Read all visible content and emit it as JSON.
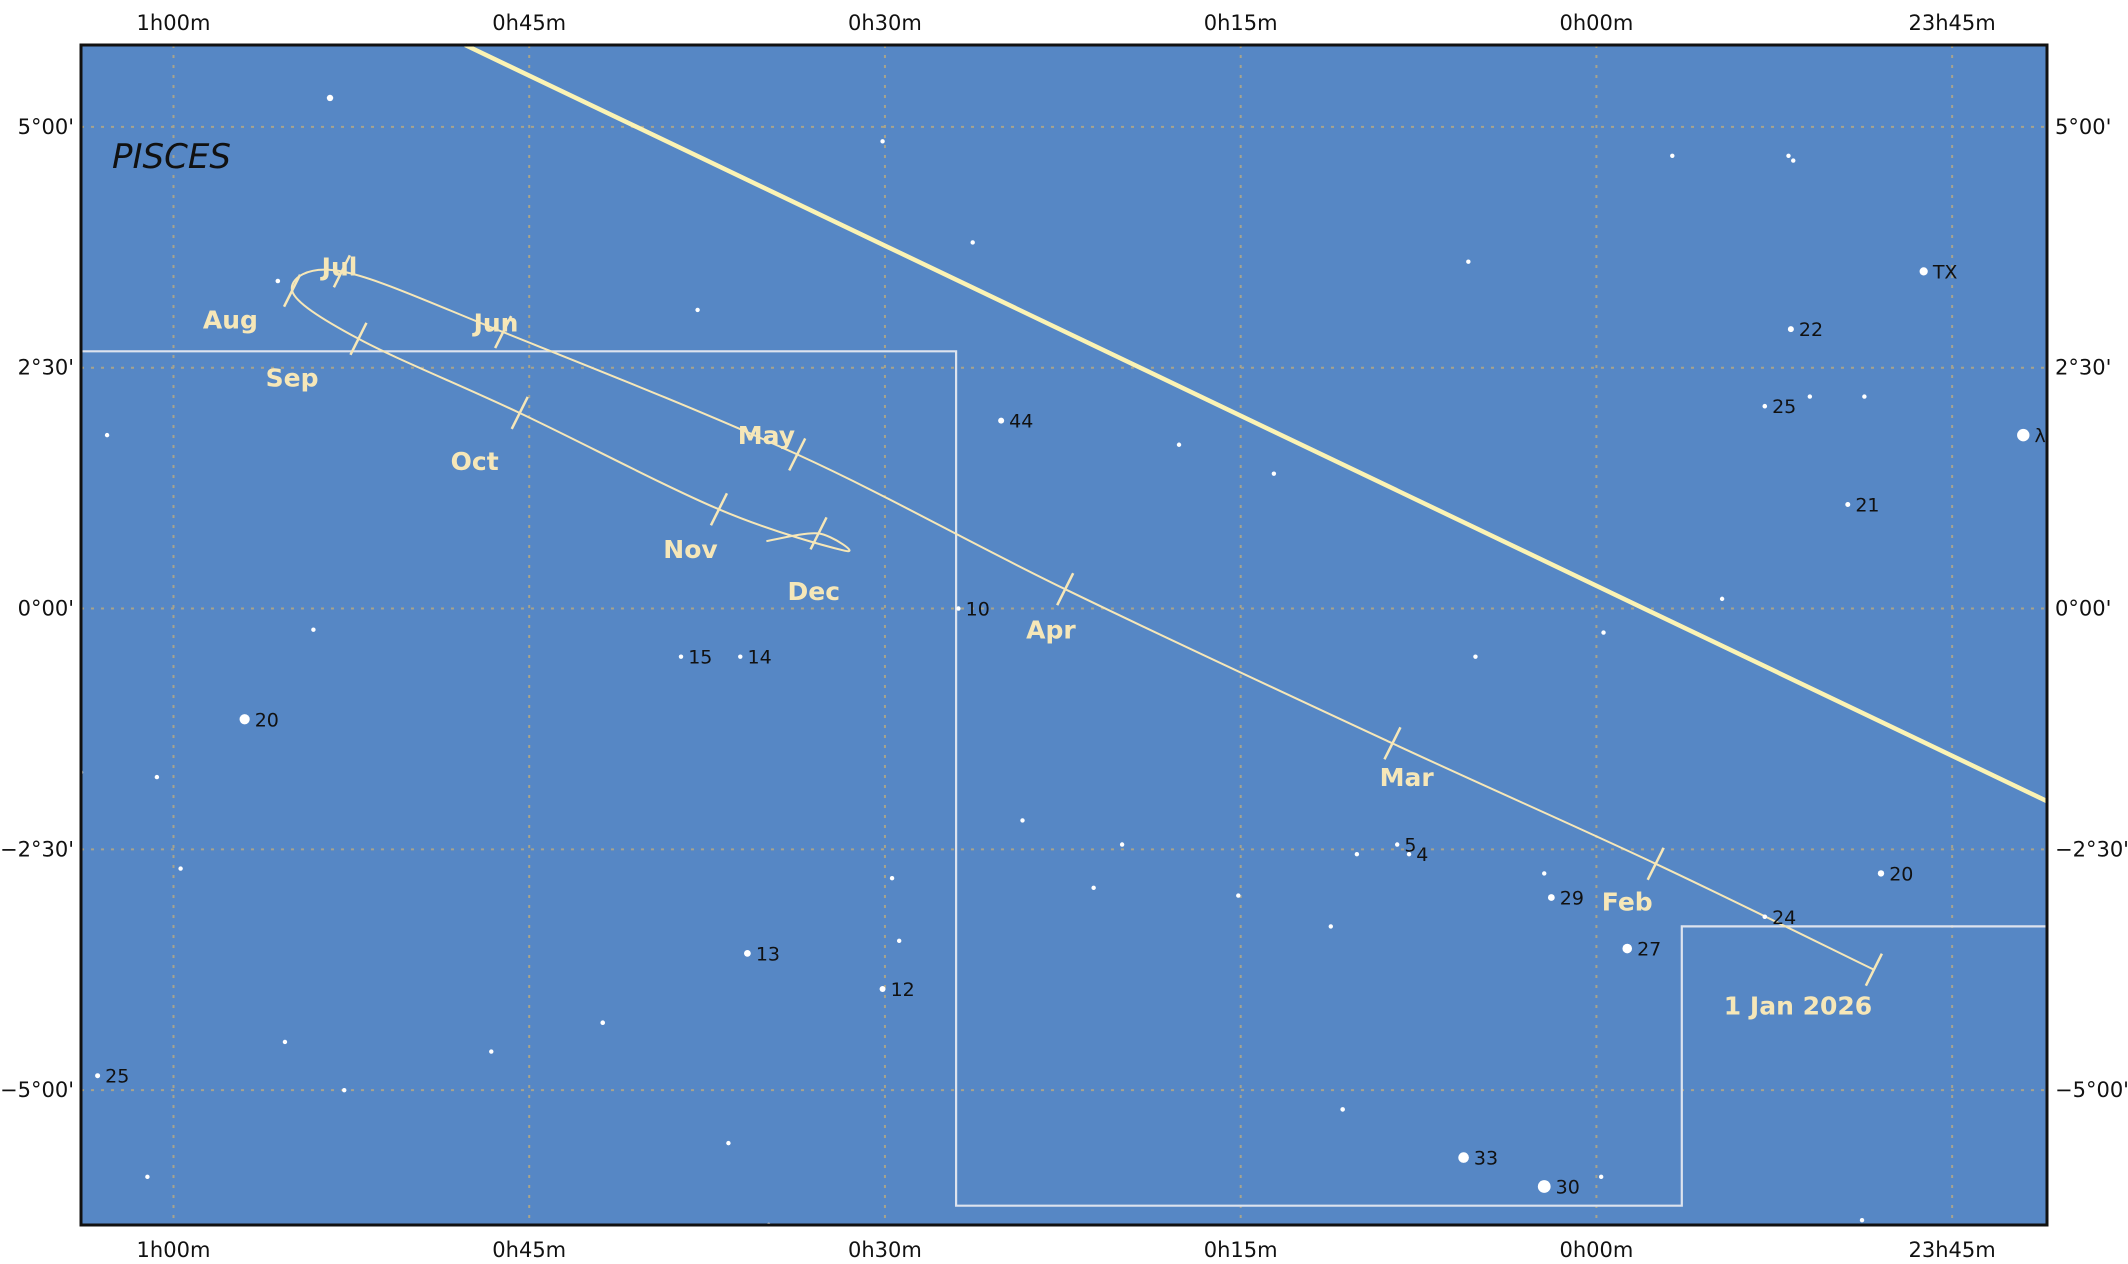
{
  "constellation": "PISCES",
  "chart_data": {
    "type": "scatter",
    "ra_ticks": [
      "1h00m",
      "0h45m",
      "0h30m",
      "0h15m",
      "0h00m",
      "23h45m"
    ],
    "ra_tick_minutes": [
      60,
      45,
      30,
      15,
      0,
      -15
    ],
    "dec_ticks": [
      "5°00'",
      "2°30'",
      "0°00'",
      "−2°30'",
      "−5°00'"
    ],
    "dec_tick_degrees": [
      5,
      2.5,
      0,
      -2.5,
      -5
    ],
    "ra_range_minutes": [
      63.9,
      -19
    ],
    "dec_range_degrees": [
      5.85,
      -6.4
    ],
    "grid": true,
    "colors": {
      "sky": "#5687c5",
      "grid": "#a7a38c",
      "ecliptic": "#fbf3b4",
      "track": "#f6e7b8",
      "boundary": "#dde3ee",
      "star": "#ffffff"
    },
    "stars": [
      {
        "ra": 53.4,
        "dec": 5.3,
        "mag": 5.8
      },
      {
        "ra": 30.1,
        "dec": 4.85,
        "mag": 6.3
      },
      {
        "ra": 26.3,
        "dec": 3.8,
        "mag": 6.7
      },
      {
        "ra": 5.4,
        "dec": 3.6,
        "mag": 6.7
      },
      {
        "ra": 55.6,
        "dec": 3.4,
        "mag": 6.2
      },
      {
        "ra": 37.9,
        "dec": 3.1,
        "mag": 6.3
      },
      {
        "ra": 62.8,
        "dec": 1.8,
        "mag": 6.6
      },
      {
        "ra": 25.1,
        "dec": 1.95,
        "mag": 5.9,
        "label": "44"
      },
      {
        "ra": 17.6,
        "dec": 1.7,
        "mag": 6.3
      },
      {
        "ra": 13.6,
        "dec": 1.4,
        "mag": 6.4
      },
      {
        "ra": 26.9,
        "dec": 0.0,
        "mag": 6.8,
        "label": "10"
      },
      {
        "ra": -5.3,
        "dec": 0.1,
        "mag": 6.3
      },
      {
        "ra": -0.3,
        "dec": -0.25,
        "mag": 6.6
      },
      {
        "ra": 5.1,
        "dec": -0.5,
        "mag": 6.4
      },
      {
        "ra": 54.1,
        "dec": -0.22,
        "mag": 6.6
      },
      {
        "ra": 38.6,
        "dec": -0.5,
        "mag": 6.4,
        "label": "15"
      },
      {
        "ra": 36.1,
        "dec": -0.5,
        "mag": 6.3,
        "label": "14"
      },
      {
        "ra": 57.0,
        "dec": -1.15,
        "mag": 5.0,
        "label": "20"
      },
      {
        "ra": 63.9,
        "dec": -1.7,
        "mag": 6.9
      },
      {
        "ra": 60.7,
        "dec": -1.75,
        "mag": 6.5
      },
      {
        "ra": 24.2,
        "dec": -2.2,
        "mag": 6.3
      },
      {
        "ra": 20.0,
        "dec": -2.45,
        "mag": 6.8
      },
      {
        "ra": 10.1,
        "dec": -2.55,
        "mag": 6.8
      },
      {
        "ra": 8.4,
        "dec": -2.45,
        "mag": 6.5,
        "label": "5"
      },
      {
        "ra": 7.9,
        "dec": -2.55,
        "mag": 6.7,
        "label": "4"
      },
      {
        "ra": 59.7,
        "dec": -2.7,
        "mag": 6.9
      },
      {
        "ra": 29.7,
        "dec": -2.8,
        "mag": 6.8
      },
      {
        "ra": 21.2,
        "dec": -2.9,
        "mag": 6.8
      },
      {
        "ra": 15.1,
        "dec": -2.98,
        "mag": 6.8
      },
      {
        "ra": 2.2,
        "dec": -2.75,
        "mag": 6.8
      },
      {
        "ra": 1.9,
        "dec": -3.0,
        "mag": 5.7,
        "label": "29"
      },
      {
        "ra": -12.0,
        "dec": -2.75,
        "mag": 5.8,
        "label": "20"
      },
      {
        "ra": -7.1,
        "dec": -3.2,
        "mag": 6.2,
        "label": "24"
      },
      {
        "ra": 11.2,
        "dec": -3.3,
        "mag": 6.9
      },
      {
        "ra": 29.4,
        "dec": -3.45,
        "mag": 6.9
      },
      {
        "ra": -1.3,
        "dec": -3.53,
        "mag": 5.1,
        "label": "27"
      },
      {
        "ra": 35.8,
        "dec": -3.58,
        "mag": 5.7,
        "label": "13"
      },
      {
        "ra": 30.1,
        "dec": -3.95,
        "mag": 5.9,
        "label": "12"
      },
      {
        "ra": 41.9,
        "dec": -4.3,
        "mag": 6.2
      },
      {
        "ra": 55.3,
        "dec": -4.5,
        "mag": 6.6
      },
      {
        "ra": 46.6,
        "dec": -4.6,
        "mag": 6.4
      },
      {
        "ra": 63.2,
        "dec": -4.85,
        "mag": 6.1,
        "label": "25"
      },
      {
        "ra": 52.8,
        "dec": -5.0,
        "mag": 6.9
      },
      {
        "ra": 10.7,
        "dec": -5.2,
        "mag": 6.2
      },
      {
        "ra": 36.6,
        "dec": -5.55,
        "mag": 6.6
      },
      {
        "ra": 5.6,
        "dec": -5.7,
        "mag": 4.9,
        "label": "33"
      },
      {
        "ra": 2.2,
        "dec": -6.0,
        "mag": 4.4,
        "label": "30"
      },
      {
        "ra": 61.1,
        "dec": -5.9,
        "mag": 6.8
      },
      {
        "ra": -0.2,
        "dec": -5.9,
        "mag": 6.7
      },
      {
        "ra": 34.9,
        "dec": -6.4,
        "mag": 6.7
      },
      {
        "ra": -11.2,
        "dec": -6.35,
        "mag": 6.6
      },
      {
        "ra": -3.2,
        "dec": 4.7,
        "mag": 6.8
      },
      {
        "ra": -8.1,
        "dec": 4.7,
        "mag": 6.8
      },
      {
        "ra": -8.3,
        "dec": 4.65,
        "mag": 6.8
      },
      {
        "ra": -13.8,
        "dec": 3.5,
        "mag": 5.4,
        "label": "TX"
      },
      {
        "ra": -8.2,
        "dec": 2.9,
        "mag": 5.9,
        "label": "22"
      },
      {
        "ra": -7.1,
        "dec": 2.1,
        "mag": 6.2,
        "label": "25"
      },
      {
        "ra": -9.0,
        "dec": 2.2,
        "mag": 6.8
      },
      {
        "ra": -11.3,
        "dec": 2.2,
        "mag": 6.8
      },
      {
        "ra": -10.6,
        "dec": 1.08,
        "mag": 6.1,
        "label": "21"
      },
      {
        "ra": -18.0,
        "dec": 1.8,
        "mag": 4.5,
        "label": "λ"
      }
    ],
    "ecliptic": [
      [
        47.7,
        5.85
      ],
      [
        -19,
        -2.0
      ]
    ],
    "track": [
      [
        -11.7,
        -3.75
      ],
      [
        -2.5,
        -2.65
      ],
      [
        8.6,
        -1.4
      ],
      [
        22.4,
        0.2
      ],
      [
        33.7,
        1.6
      ],
      [
        46.1,
        2.87
      ],
      [
        52.9,
        3.5
      ],
      [
        55.0,
        3.3
      ],
      [
        52.2,
        2.8
      ],
      [
        45.4,
        2.03
      ],
      [
        37.0,
        1.03
      ],
      [
        31.7,
        0.6
      ],
      [
        32.8,
        0.78
      ],
      [
        35.0,
        0.7
      ]
    ],
    "months": [
      {
        "label": "1 Jan 2026",
        "ra": -11.7,
        "dec": -3.75,
        "label_ra": -8.5,
        "label_dec": -4.12
      },
      {
        "label": "Feb",
        "ra": -2.5,
        "dec": -2.65,
        "label_ra": -1.3,
        "label_dec": -3.04
      },
      {
        "label": "Mar",
        "ra": 8.6,
        "dec": -1.4,
        "label_ra": 8.0,
        "label_dec": -1.75
      },
      {
        "label": "Apr",
        "ra": 22.4,
        "dec": 0.2,
        "label_ra": 23.0,
        "label_dec": -0.22
      },
      {
        "label": "May",
        "ra": 33.7,
        "dec": 1.6,
        "label_ra": 35.0,
        "label_dec": 1.8
      },
      {
        "label": "Jun",
        "ra": 46.1,
        "dec": 2.87,
        "label_ra": 46.4,
        "label_dec": 2.97
      },
      {
        "label": "Jul",
        "ra": 52.9,
        "dec": 3.5,
        "label_ra": 53.0,
        "label_dec": 3.55
      },
      {
        "label": "Aug",
        "ra": 55.0,
        "dec": 3.3,
        "label_ra": 57.6,
        "label_dec": 3.0
      },
      {
        "label": "Sep",
        "ra": 52.2,
        "dec": 2.8,
        "label_ra": 55.0,
        "label_dec": 2.4
      },
      {
        "label": "Oct",
        "ra": 45.4,
        "dec": 2.03,
        "label_ra": 47.3,
        "label_dec": 1.53
      },
      {
        "label": "Nov",
        "ra": 37.0,
        "dec": 1.03,
        "label_ra": 38.2,
        "label_dec": 0.62
      },
      {
        "label": "Dec",
        "ra": 32.8,
        "dec": 0.78,
        "label_ra": 33.0,
        "label_dec": 0.18
      }
    ],
    "boundaries": [
      [
        [
          -19,
          -3.3
        ],
        [
          -3.6,
          -3.3
        ],
        [
          -3.6,
          -6.2
        ],
        [
          27.0,
          -6.2
        ],
        [
          27.0,
          2.67
        ],
        [
          63.9,
          2.67
        ]
      ]
    ]
  }
}
